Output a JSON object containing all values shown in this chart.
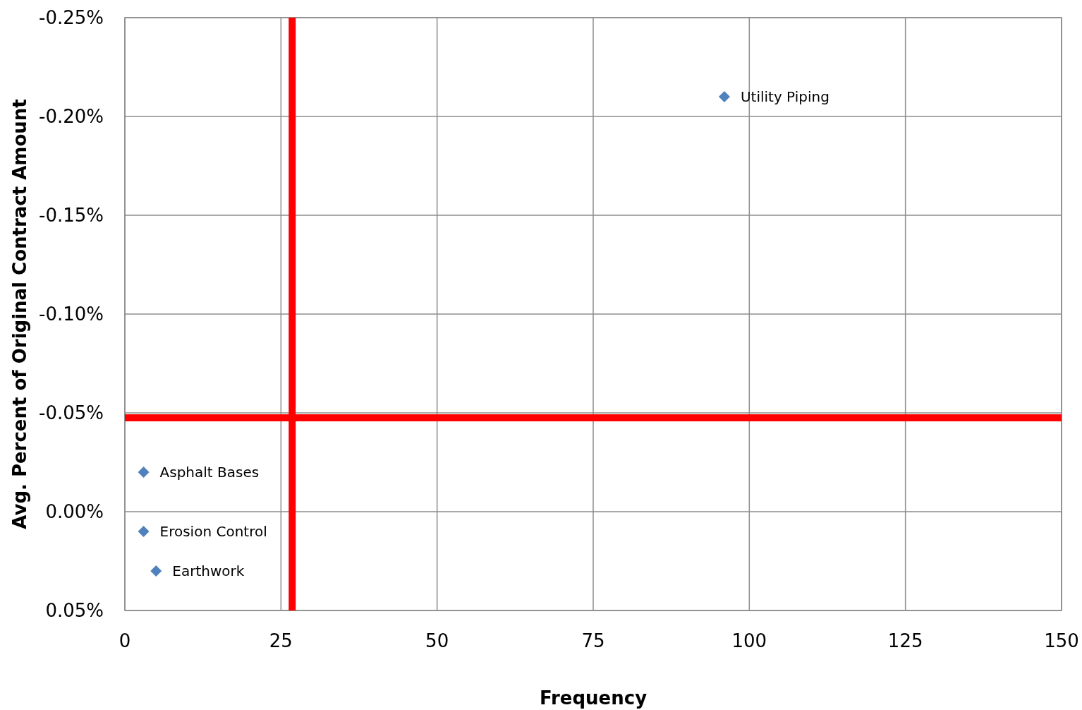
{
  "chart_data": {
    "type": "scatter",
    "xlabel": "Frequency",
    "ylabel": "Avg. Percent of Original Contract Amount",
    "x": [
      96,
      3,
      3,
      5
    ],
    "values": [
      -0.21,
      -0.02,
      0.01,
      0.03
    ],
    "color": "#4f81bd",
    "marker": "diamond",
    "grid": true,
    "xlim": [
      0,
      150
    ],
    "xticks": [
      0,
      25,
      50,
      75,
      100,
      125,
      150
    ],
    "ylim": [
      0.05,
      -0.25
    ],
    "yticks": [
      {
        "value": -0.25,
        "label": "-0.25%"
      },
      {
        "value": -0.2,
        "label": "-0.20%"
      },
      {
        "value": -0.15,
        "label": "-0.15%"
      },
      {
        "value": -0.1,
        "label": "-0.10%"
      },
      {
        "value": -0.05,
        "label": "-0.05%"
      },
      {
        "value": 0,
        "label": "0.00%"
      },
      {
        "value": 0.05,
        "label": "0.05%"
      }
    ],
    "ref_lines": [
      {
        "axis": "x",
        "value": 26.8,
        "color": "#ff0000"
      },
      {
        "axis": "y",
        "value": -0.0475,
        "color": "#ff0000"
      }
    ],
    "annotations": [
      {
        "text": "Utility Piping",
        "x": 96,
        "y": -0.21
      },
      {
        "text": "Asphalt Bases",
        "x": 3,
        "y": -0.02
      },
      {
        "text": "Erosion Control",
        "x": 3,
        "y": 0.01
      },
      {
        "text": "Earthwork",
        "x": 5,
        "y": 0.03
      }
    ]
  }
}
